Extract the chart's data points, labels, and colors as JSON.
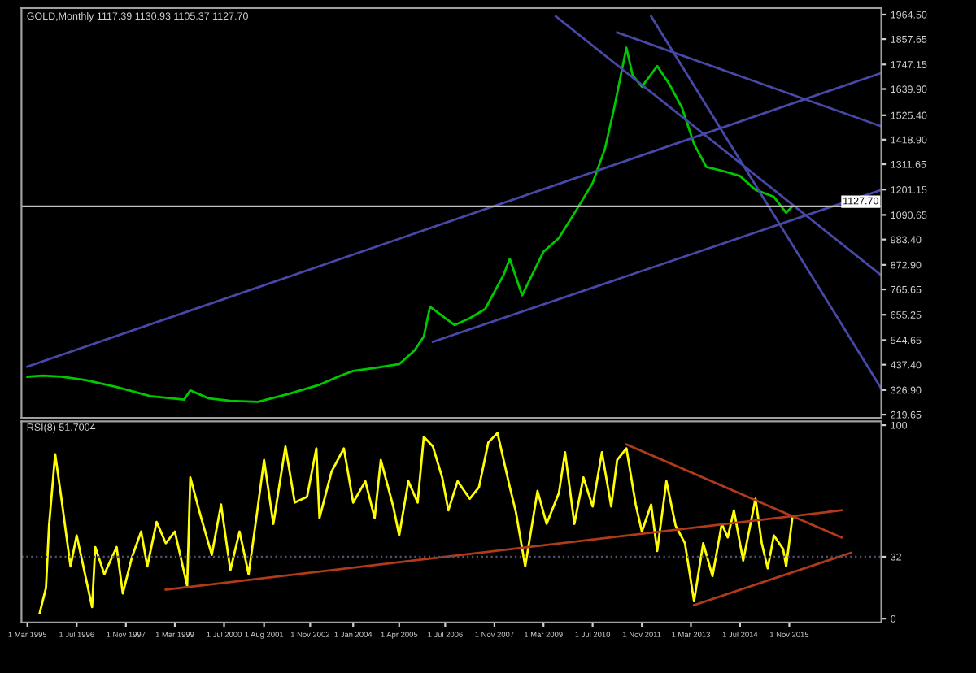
{
  "chart_data": [
    {
      "type": "line",
      "title": "GOLD,Monthly 1117.39 1130.93 1105.37 1127.70",
      "tick_labels": "y",
      "xlim": [
        "1995-01",
        "2018-05"
      ],
      "ylim": [
        205,
        1993
      ],
      "yticks": [
        {
          "value": 1964.5,
          "label": "1964.50"
        },
        {
          "value": 1857.65,
          "label": "1857.65"
        },
        {
          "value": 1747.15,
          "label": "1747.15"
        },
        {
          "value": 1639.9,
          "label": "1639.90"
        },
        {
          "value": 1525.4,
          "label": "1525.40"
        },
        {
          "value": 1418.9,
          "label": "1418.90"
        },
        {
          "value": 1311.65,
          "label": "1311.65"
        },
        {
          "value": 1201.15,
          "label": "1201.15"
        },
        {
          "value": 1090.65,
          "label": "1090.65"
        },
        {
          "value": 983.4,
          "label": "983.40"
        },
        {
          "value": 872.9,
          "label": "872.90"
        },
        {
          "value": 765.65,
          "label": "765.65"
        },
        {
          "value": 655.25,
          "label": "655.25"
        },
        {
          "value": 544.65,
          "label": "544.65"
        },
        {
          "value": 437.4,
          "label": "437.40"
        },
        {
          "value": 326.9,
          "label": "326.90"
        },
        {
          "value": 219.65,
          "label": "219.65"
        }
      ],
      "ref_lines": [
        {
          "axis": "y",
          "value": 1127.7,
          "label": "1127.70",
          "color": "#c0c0c0",
          "line_style": "solid"
        }
      ],
      "series": [
        {
          "color": "#00c800",
          "x": [
            "1995-03",
            "1995-08",
            "1996-02",
            "1996-10",
            "1997-08",
            "1998-07",
            "1999-06",
            "1999-08",
            "2000-02",
            "2000-09",
            "2001-06",
            "2002-04",
            "2003-02",
            "2003-09",
            "2004-01",
            "2004-09",
            "2005-04",
            "2005-09",
            "2005-12",
            "2006-02",
            "2006-10",
            "2007-03",
            "2007-08",
            "2008-02",
            "2008-04",
            "2008-08",
            "2009-03",
            "2009-08",
            "2010-02",
            "2010-07",
            "2010-11",
            "2011-02",
            "2011-06",
            "2011-08",
            "2011-11",
            "2012-04",
            "2012-08",
            "2012-12",
            "2013-04",
            "2013-08",
            "2014-02",
            "2014-07",
            "2014-12",
            "2015-06",
            "2015-10",
            "2015-12"
          ],
          "values": [
            385,
            390,
            385,
            370,
            340,
            300,
            285,
            325,
            290,
            280,
            275,
            310,
            350,
            390,
            410,
            425,
            440,
            500,
            560,
            690,
            610,
            640,
            680,
            830,
            900,
            740,
            930,
            990,
            1120,
            1230,
            1380,
            1560,
            1820,
            1700,
            1650,
            1740,
            1660,
            1560,
            1400,
            1300,
            1280,
            1260,
            1200,
            1170,
            1100,
            1128
          ]
        },
        {
          "color": "#4848a8",
          "x": [
            "1995-03",
            "2018-05"
          ],
          "values": [
            429,
            1710
          ]
        },
        {
          "color": "#4848a8",
          "x": [
            "2006-03",
            "2018-05"
          ],
          "values": [
            537,
            1200
          ]
        },
        {
          "color": "#4848a8",
          "x": [
            "2011-03",
            "2018-05"
          ],
          "values": [
            1887,
            1477
          ]
        },
        {
          "color": "#4848a8",
          "x": [
            "2009-07",
            "2018-05"
          ],
          "values": [
            1957,
            827
          ]
        },
        {
          "color": "#4848a8",
          "x": [
            "2012-02",
            "2018-05"
          ],
          "values": [
            1957,
            333
          ]
        }
      ]
    },
    {
      "type": "line",
      "title": "RSI(8) 51.7004",
      "xlim": [
        "1995-01",
        "2018-05"
      ],
      "ylim": [
        -2,
        102
      ],
      "yticks": [
        100,
        32,
        0
      ],
      "xticks": [
        {
          "value": "1995-03",
          "label": "1 Mar 1995"
        },
        {
          "value": "1996-07",
          "label": "1 Jul 1996"
        },
        {
          "value": "1997-11",
          "label": "1 Nov 1997"
        },
        {
          "value": "1999-03",
          "label": "1 Mar 1999"
        },
        {
          "value": "2000-07",
          "label": "1 Jul 2000"
        },
        {
          "value": "2001-08",
          "label": "1 Aug 2001"
        },
        {
          "value": "2002-11",
          "label": "1 Nov 2002"
        },
        {
          "value": "2004-01",
          "label": "1 Jan 2004"
        },
        {
          "value": "2005-04",
          "label": "1 Apr 2005"
        },
        {
          "value": "2006-07",
          "label": "1 Jul 2006"
        },
        {
          "value": "2007-11",
          "label": "1 Nov 2007"
        },
        {
          "value": "2009-03",
          "label": "1 Mar 2009"
        },
        {
          "value": "2010-07",
          "label": "1 Jul 2010"
        },
        {
          "value": "2011-11",
          "label": "1 Nov 2011"
        },
        {
          "value": "2013-03",
          "label": "1 Mar 2013"
        },
        {
          "value": "2014-07",
          "label": "1 Jul 2014"
        },
        {
          "value": "2015-11",
          "label": "1 Nov 2015"
        }
      ],
      "ref_lines": [
        {
          "axis": "y",
          "value": 32,
          "color": "#505070",
          "line_style": "dotted"
        }
      ],
      "series": [
        {
          "color": "#ffff00",
          "x": [
            "1995-07",
            "1995-09",
            "1995-10",
            "1995-12",
            "1996-02",
            "1996-05",
            "1996-07",
            "1996-12",
            "1997-01",
            "1997-04",
            "1997-08",
            "1997-10",
            "1998-01",
            "1998-04",
            "1998-06",
            "1998-09",
            "1998-12",
            "1999-03",
            "1999-07",
            "1999-08",
            "1999-11",
            "2000-03",
            "2000-06",
            "2000-09",
            "2000-12",
            "2001-03",
            "2001-06",
            "2001-08",
            "2001-11",
            "2002-03",
            "2002-06",
            "2002-10",
            "2003-01",
            "2003-02",
            "2003-06",
            "2003-10",
            "2004-01",
            "2004-05",
            "2004-08",
            "2004-10",
            "2005-02",
            "2005-04",
            "2005-07",
            "2005-10",
            "2005-12",
            "2006-03",
            "2006-06",
            "2006-08",
            "2006-11",
            "2007-03",
            "2007-06",
            "2007-09",
            "2007-12",
            "2008-04",
            "2008-06",
            "2008-09",
            "2009-01",
            "2009-04",
            "2009-08",
            "2009-10",
            "2010-01",
            "2010-04",
            "2010-07",
            "2010-10",
            "2011-01",
            "2011-03",
            "2011-06",
            "2011-09",
            "2011-11",
            "2012-02",
            "2012-04",
            "2012-07",
            "2012-10",
            "2013-01",
            "2013-04",
            "2013-07",
            "2013-10",
            "2014-01",
            "2014-03",
            "2014-05",
            "2014-08",
            "2014-12",
            "2015-02",
            "2015-04",
            "2015-06",
            "2015-09",
            "2015-10",
            "2015-12"
          ],
          "values": [
            3,
            16,
            48,
            85,
            62,
            27,
            43,
            6,
            37,
            23,
            37,
            13,
            32,
            45,
            27,
            50,
            39,
            45,
            17,
            73,
            55,
            33,
            59,
            25,
            45,
            23,
            58,
            82,
            49,
            89,
            60,
            63,
            88,
            52,
            76,
            88,
            60,
            71,
            52,
            82,
            58,
            43,
            71,
            60,
            94,
            89,
            73,
            56,
            71,
            62,
            68,
            91,
            96,
            68,
            55,
            27,
            66,
            49,
            65,
            86,
            49,
            73,
            58,
            86,
            58,
            82,
            88,
            59,
            45,
            59,
            35,
            71,
            48,
            39,
            9,
            39,
            22,
            49,
            42,
            56,
            30,
            62,
            39,
            26,
            43,
            36,
            27,
            52
          ]
        },
        {
          "color": "#b03a1a",
          "x": [
            "1998-12",
            "2017-04"
          ],
          "values": [
            15,
            56
          ]
        },
        {
          "color": "#b03a1a",
          "x": [
            "2011-06",
            "2017-04"
          ],
          "values": [
            90,
            42
          ]
        },
        {
          "color": "#b03a1a",
          "x": [
            "2013-04",
            "2017-07"
          ],
          "values": [
            7,
            34
          ]
        }
      ]
    }
  ]
}
